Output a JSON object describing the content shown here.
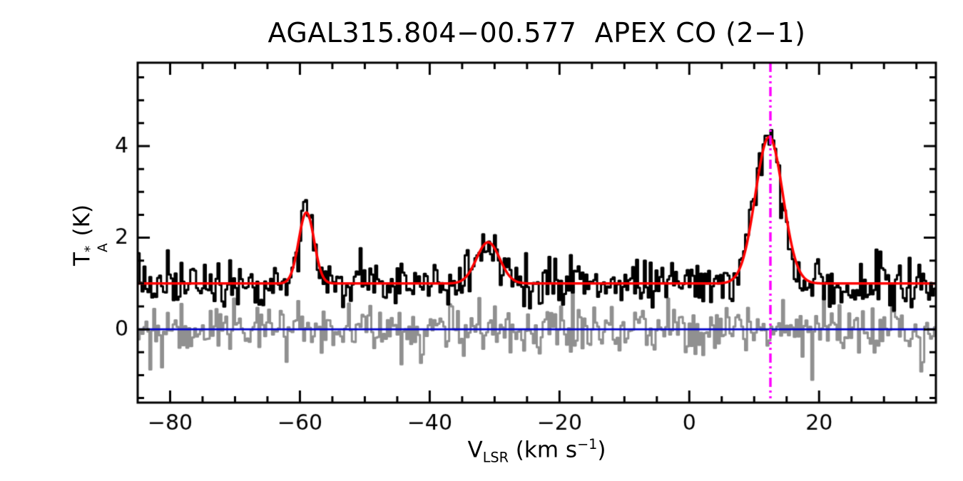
{
  "chart_data": {
    "type": "line",
    "title": "AGAL315.804−00.577  APEX CO (2−1)",
    "xlabel": {
      "pre": "V",
      "sub": "LSR",
      "mid": " (km s",
      "sup": "−1",
      "post": ")"
    },
    "ylabel": {
      "pre": "T",
      "sup": "*",
      "sub": "A",
      "post": " (K)"
    },
    "xlim": [
      -85,
      38
    ],
    "ylim": [
      -1.6,
      5.82
    ],
    "xticks": [
      -80,
      -60,
      -40,
      -20,
      0,
      20
    ],
    "yticks": [
      0,
      2,
      4
    ],
    "x_minor_step": 5,
    "y_minor_step": 0.5,
    "grid": false,
    "legend": "none",
    "noise_seed": 7,
    "channel_width_kms": 0.3,
    "series": [
      {
        "name": "observed-spectrum",
        "style": "histogram",
        "color": "#000000",
        "baseline": 1.0,
        "noise_sigma": 0.24
      },
      {
        "name": "gaussian-fit",
        "style": "smooth",
        "color": "#ff0000",
        "baseline": 1.0,
        "peaks": [
          {
            "center": -59.0,
            "amplitude": 1.55,
            "fwhm": 2.8
          },
          {
            "center": -31.0,
            "amplitude": 0.9,
            "fwhm": 4.2
          },
          {
            "center": 12.3,
            "amplitude": 3.2,
            "fwhm": 5.0
          }
        ]
      },
      {
        "name": "residual",
        "style": "histogram",
        "color": "#909090",
        "baseline": 0.0,
        "noise_sigma": 0.26
      },
      {
        "name": "zero-line",
        "style": "hline",
        "color": "#0000cc",
        "y": 0.0
      },
      {
        "name": "vlsr-marker",
        "style": "vline-dashdot",
        "color": "#ff00ff",
        "x": 12.5
      }
    ]
  }
}
